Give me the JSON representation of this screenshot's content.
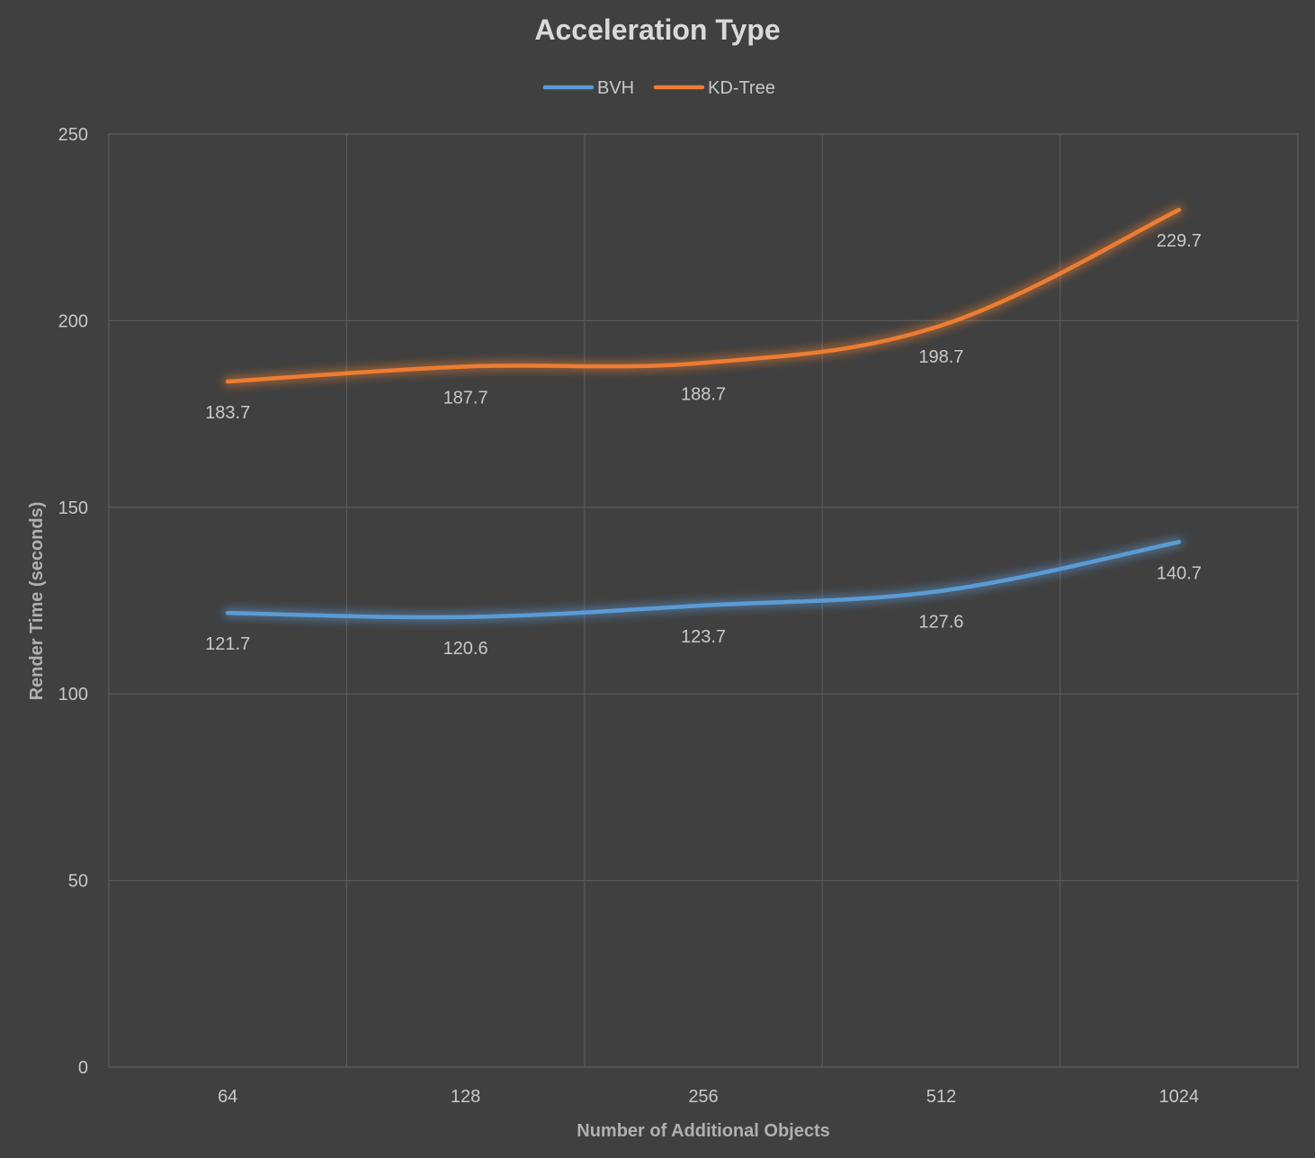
{
  "chart_data": {
    "type": "line",
    "title": "Acceleration Type",
    "xlabel": "Number of Additional Objects",
    "ylabel": "Render Time (seconds)",
    "categories": [
      "64",
      "128",
      "256",
      "512",
      "1024"
    ],
    "ylim": [
      0,
      250
    ],
    "yticks": [
      "0",
      "50",
      "100",
      "150",
      "200",
      "250"
    ],
    "grid": true,
    "legend_position": "top",
    "series": [
      {
        "name": "BVH",
        "color": "#5b9bd5",
        "values": [
          121.7,
          120.6,
          123.7,
          127.6,
          140.7
        ],
        "labels": [
          "121.7",
          "120.6",
          "123.7",
          "127.6",
          "140.7"
        ]
      },
      {
        "name": "KD-Tree",
        "color": "#ed7d31",
        "values": [
          183.7,
          187.7,
          188.7,
          198.7,
          229.7
        ],
        "labels": [
          "183.7",
          "187.7",
          "188.7",
          "198.7",
          "229.7"
        ]
      }
    ]
  }
}
